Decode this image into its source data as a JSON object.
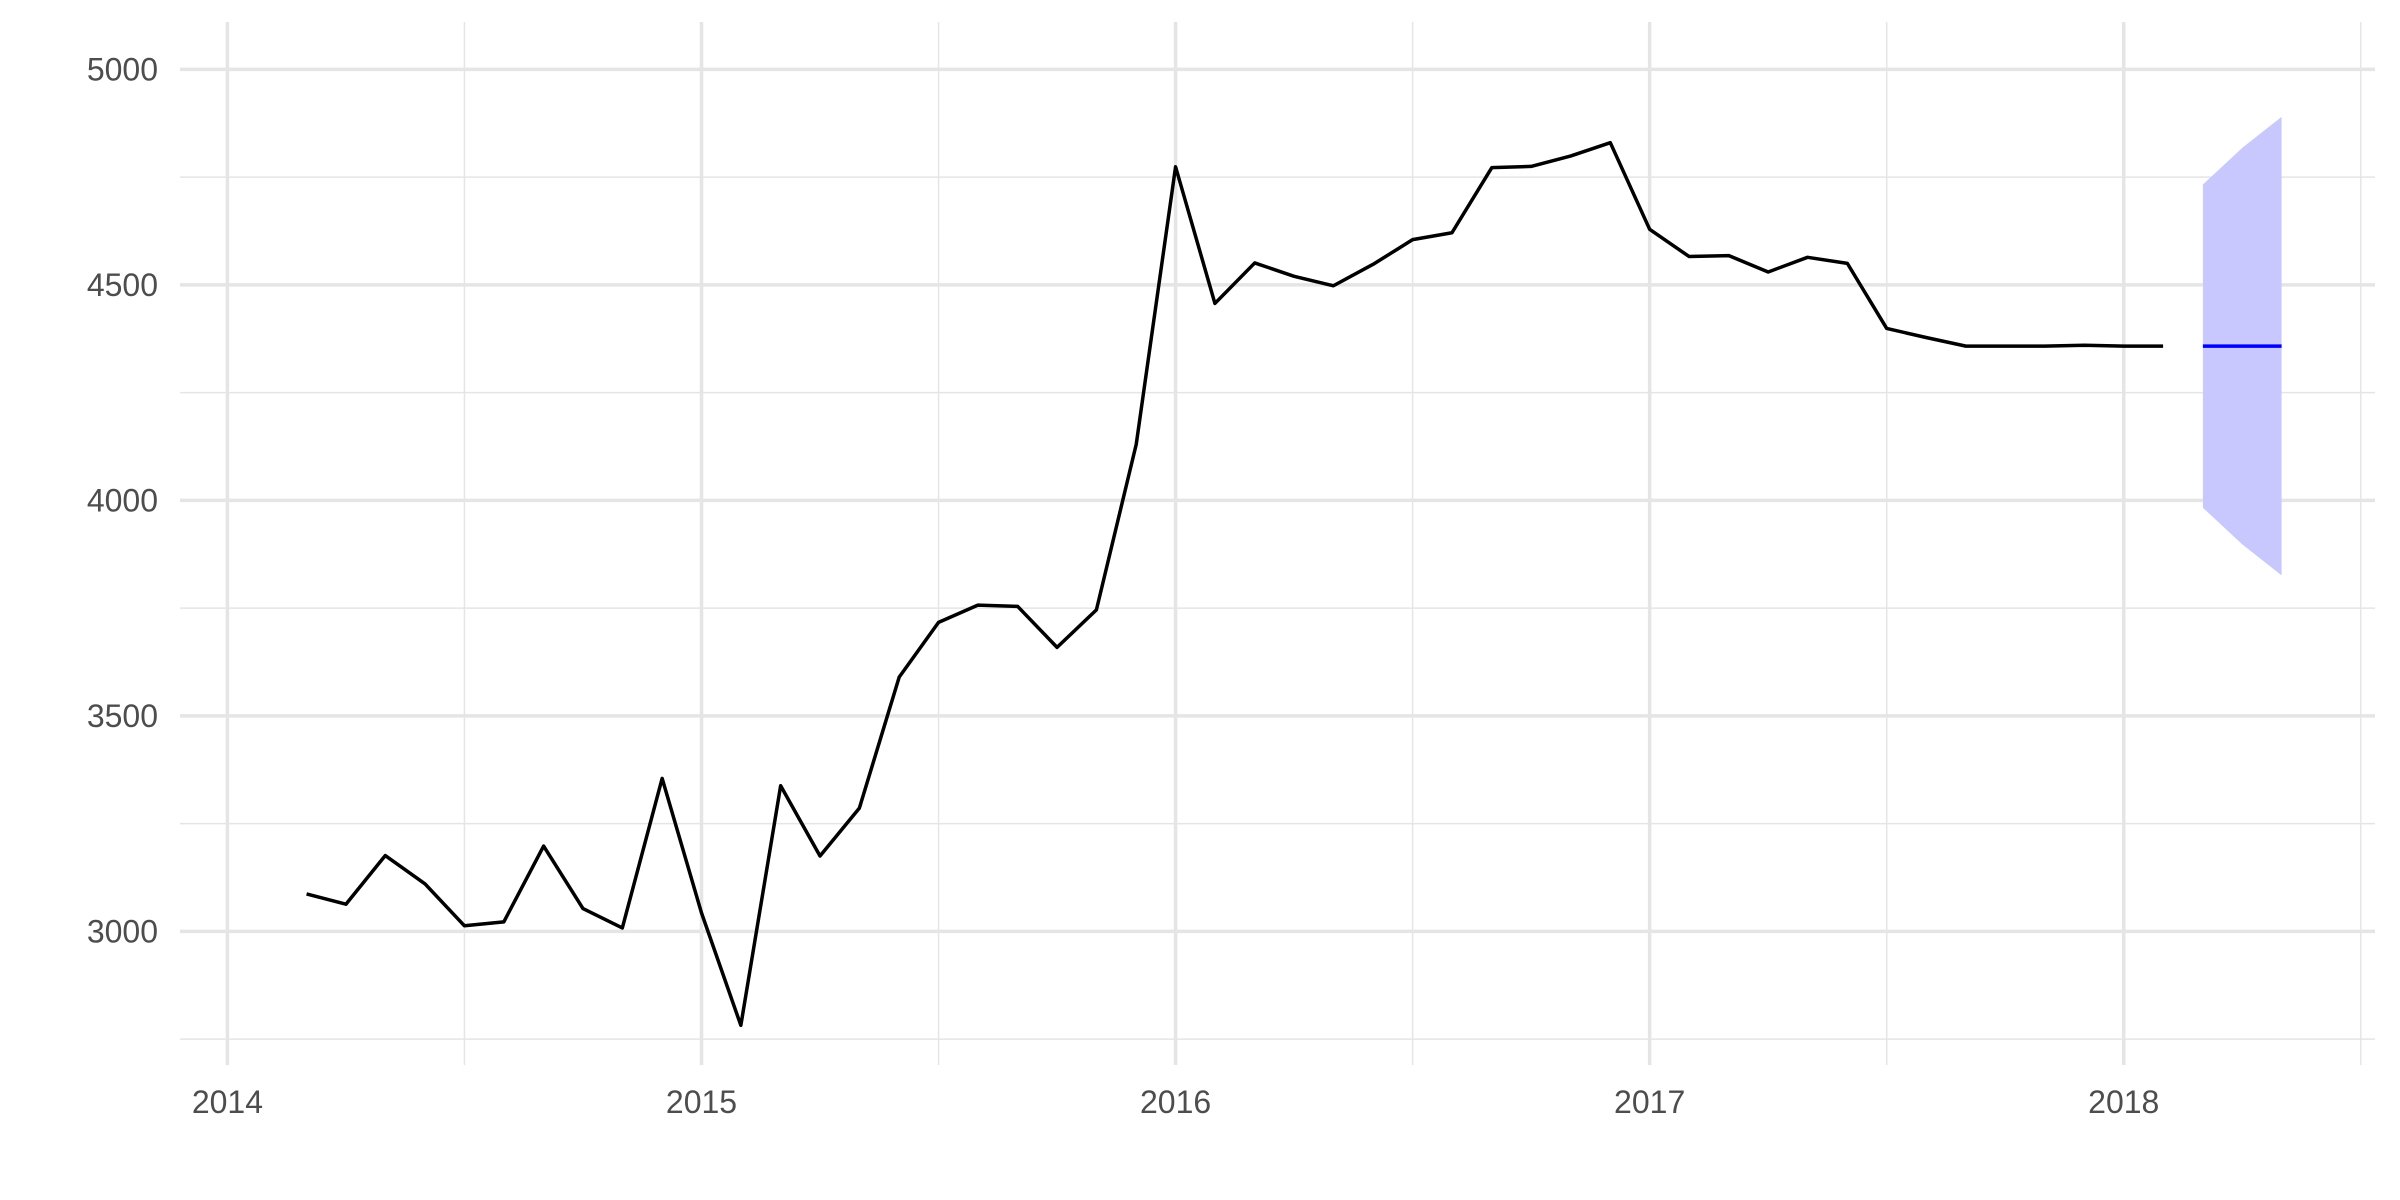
{
  "chart_data": {
    "type": "line",
    "title": "",
    "xlabel": "",
    "ylabel": "",
    "xlim": [
      2013.9,
      2018.53
    ],
    "ylim": [
      2690,
      5110
    ],
    "x_ticks": [
      2014,
      2015,
      2016,
      2017,
      2018
    ],
    "x_minor_ticks": [
      2014.5,
      2015.5,
      2016.5,
      2017.5,
      2018.5
    ],
    "y_ticks": [
      3000,
      3500,
      4000,
      4500,
      5000
    ],
    "y_minor_ticks": [
      2750,
      3250,
      3750,
      4250,
      4750
    ],
    "grid": true,
    "legend": "none",
    "colors": {
      "series": "#000000",
      "forecast": "#0000ff",
      "interval_fill": "#c8c8ff",
      "grid": "#e5e5e5"
    },
    "series": [
      {
        "x": [
          2014.167,
          2014.25,
          2014.333,
          2014.417,
          2014.5,
          2014.583,
          2014.667,
          2014.75,
          2014.833,
          2014.917,
          2015.0,
          2015.083,
          2015.167,
          2015.25,
          2015.333,
          2015.417,
          2015.5,
          2015.583,
          2015.667,
          2015.75,
          2015.833,
          2015.917,
          2016.0,
          2016.083,
          2016.167,
          2016.25,
          2016.333,
          2016.417,
          2016.5,
          2016.583,
          2016.667,
          2016.75,
          2016.833,
          2016.917,
          2017.0,
          2017.083,
          2017.167,
          2017.25,
          2017.333,
          2017.417,
          2017.5,
          2017.583,
          2017.667,
          2017.75,
          2017.833,
          2017.917,
          2018.0,
          2018.083
        ],
        "values": [
          3087,
          3063,
          3176,
          3110,
          3013,
          3022,
          3198,
          3053,
          3008,
          3355,
          3043,
          2782,
          3338,
          3175,
          3286,
          3590,
          3717,
          3757,
          3754,
          3659,
          3746,
          4130,
          4774,
          4457,
          4551,
          4520,
          4498,
          4548,
          4605,
          4621,
          4772,
          4775,
          4799,
          4830,
          4629,
          4566,
          4568,
          4530,
          4564,
          4550,
          4399,
          4378,
          4358,
          4358,
          4358,
          4360,
          4358,
          4358
        ]
      }
    ],
    "forecast": {
      "x": [
        2018.167,
        2018.25,
        2018.333
      ],
      "values": [
        4358,
        4358,
        4358
      ],
      "upper": [
        4733,
        4818,
        4890
      ],
      "lower": [
        3983,
        3898,
        3826
      ]
    }
  }
}
